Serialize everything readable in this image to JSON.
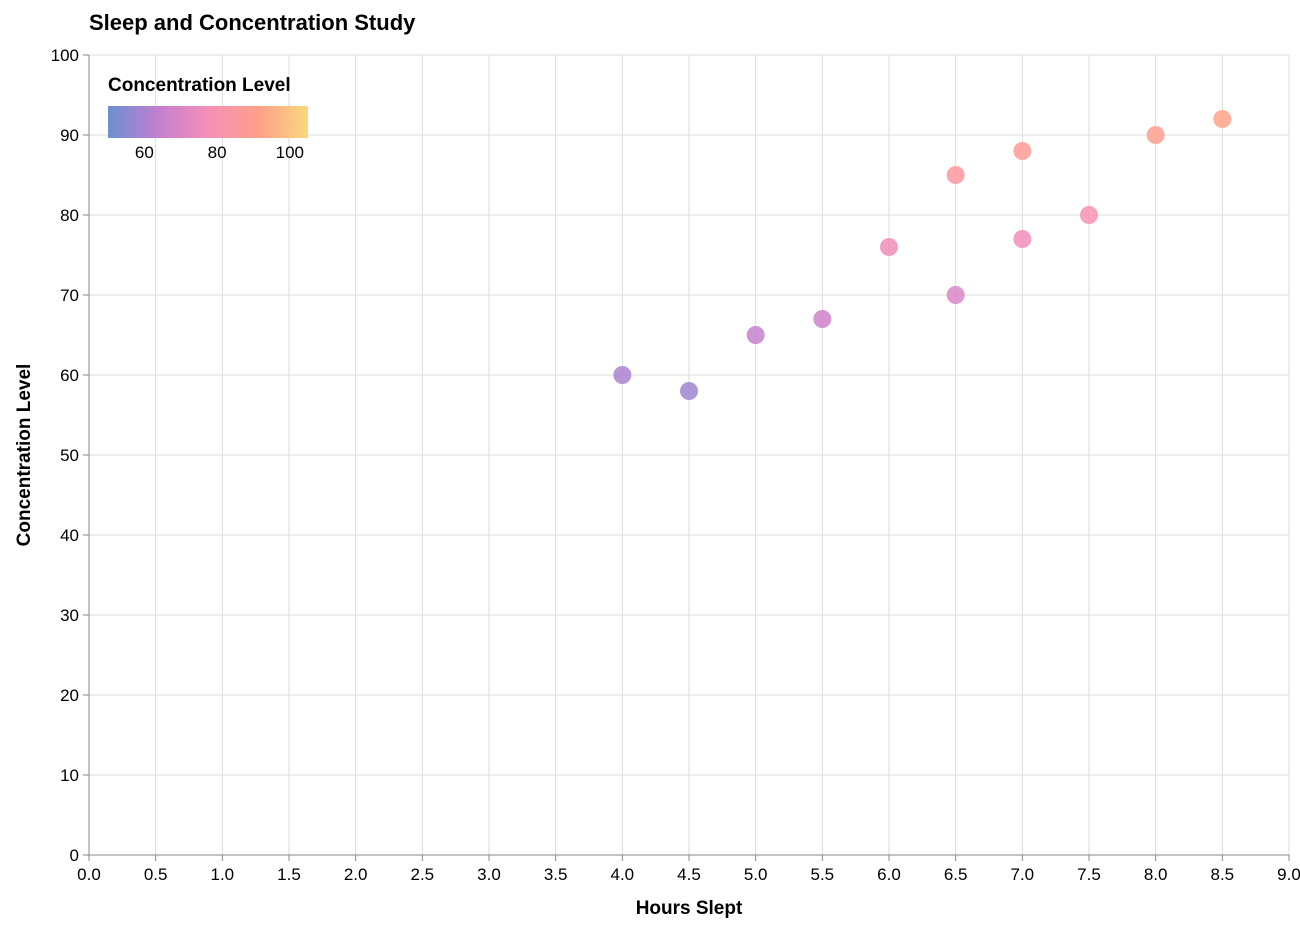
{
  "chart_data": {
    "type": "scatter",
    "title": "Sleep and Concentration Study",
    "xlabel": "Hours Slept",
    "ylabel": "Concentration Level",
    "xlim": [
      0,
      9
    ],
    "ylim": [
      0,
      100
    ],
    "x_ticks": [
      "0.0",
      "0.5",
      "1.0",
      "1.5",
      "2.0",
      "2.5",
      "3.0",
      "3.5",
      "4.0",
      "4.5",
      "5.0",
      "5.5",
      "6.0",
      "6.5",
      "7.0",
      "7.5",
      "8.0",
      "8.5",
      "9.0"
    ],
    "y_ticks": [
      "0",
      "10",
      "20",
      "30",
      "40",
      "50",
      "60",
      "70",
      "80",
      "90",
      "100"
    ],
    "grid": true,
    "legend": {
      "title": "Concentration Level",
      "placement": "top-left",
      "type": "gradient",
      "labels": [
        "60",
        "80",
        "100"
      ],
      "domain": [
        50,
        105
      ],
      "colors": [
        "#6a8fd0",
        "#c27fd0",
        "#f590b8",
        "#ff9f8a",
        "#f8d87e"
      ]
    },
    "points": [
      {
        "x": 4.0,
        "y": 60
      },
      {
        "x": 4.5,
        "y": 58
      },
      {
        "x": 5.0,
        "y": 65
      },
      {
        "x": 5.5,
        "y": 67
      },
      {
        "x": 6.0,
        "y": 76
      },
      {
        "x": 6.5,
        "y": 85
      },
      {
        "x": 6.5,
        "y": 70
      },
      {
        "x": 7.0,
        "y": 88
      },
      {
        "x": 7.0,
        "y": 77
      },
      {
        "x": 7.5,
        "y": 80
      },
      {
        "x": 8.0,
        "y": 90
      },
      {
        "x": 8.5,
        "y": 92
      }
    ]
  }
}
